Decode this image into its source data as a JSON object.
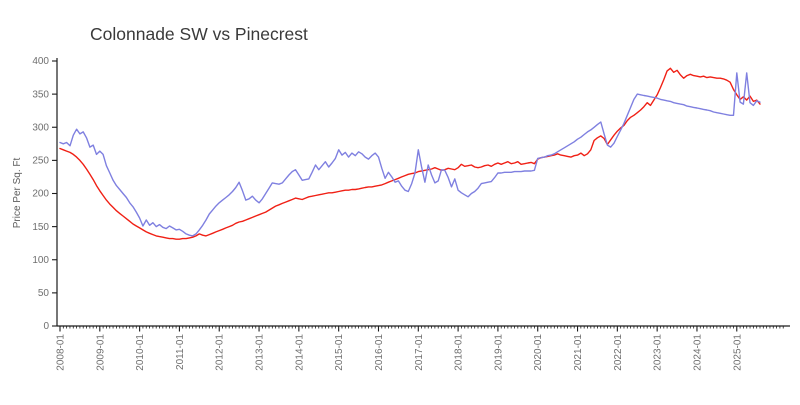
{
  "page": {
    "background": "#ffffff"
  },
  "chart_data": {
    "type": "line",
    "title": "Colonnade SW vs Pinecrest",
    "xlabel": "",
    "ylabel": "Price Per Sq. Ft",
    "x_unit": "month",
    "x_start": "2008-01",
    "x_end": "2025-08",
    "x_major_tick_labels": [
      "2008-01",
      "2009-01",
      "2010-01",
      "2011-01",
      "2012-01",
      "2013-01",
      "2014-01",
      "2015-01",
      "2016-01",
      "2017-01",
      "2018-01",
      "2019-01",
      "2020-01",
      "2021-01",
      "2022-01",
      "2023-01",
      "2024-01",
      "2025-01"
    ],
    "ylim": [
      0,
      400
    ],
    "y_ticks": [
      0,
      50,
      100,
      150,
      200,
      250,
      300,
      350,
      400
    ],
    "grid": false,
    "legend_position": "none",
    "axis_color": "#1c1c1c",
    "tick_label_color": "#6f6f6f",
    "title_color": "#3a3a3a",
    "series": [
      {
        "name": "Colonnade SW",
        "color": "#f02015",
        "values": [
          268,
          266,
          264,
          262,
          259,
          255,
          250,
          244,
          237,
          229,
          221,
          212,
          204,
          197,
          190,
          184,
          179,
          174,
          170,
          166,
          162,
          158,
          154,
          151,
          148,
          145,
          142,
          140,
          138,
          136,
          135,
          134,
          133,
          132,
          132,
          131,
          131,
          132,
          132,
          133,
          134,
          136,
          139,
          137,
          136,
          138,
          140,
          142,
          144,
          146,
          148,
          150,
          152,
          155,
          157,
          158,
          160,
          162,
          164,
          166,
          168,
          170,
          172,
          175,
          178,
          181,
          183,
          185,
          187,
          189,
          191,
          193,
          192,
          191,
          193,
          195,
          196,
          197,
          198,
          199,
          200,
          201,
          201,
          202,
          203,
          204,
          205,
          205,
          206,
          206,
          207,
          208,
          209,
          210,
          210,
          211,
          212,
          213,
          215,
          217,
          219,
          221,
          223,
          225,
          227,
          229,
          230,
          231,
          233,
          234,
          235,
          236,
          237,
          239,
          237,
          235,
          236,
          238,
          237,
          236,
          239,
          244,
          241,
          242,
          243,
          240,
          239,
          240,
          242,
          243,
          241,
          244,
          246,
          244,
          246,
          248,
          245,
          246,
          248,
          244,
          245,
          246,
          247,
          245,
          252,
          254,
          255,
          256,
          257,
          258,
          260,
          258,
          257,
          256,
          255,
          257,
          258,
          261,
          257,
          260,
          266,
          280,
          284,
          287,
          283,
          274,
          281,
          288,
          294,
          299,
          303,
          310,
          315,
          318,
          322,
          326,
          331,
          337,
          333,
          341,
          349,
          360,
          372,
          385,
          389,
          383,
          386,
          379,
          374,
          378,
          380,
          378,
          377,
          376,
          377,
          375,
          376,
          375,
          374,
          374,
          373,
          371,
          368,
          357,
          349,
          342,
          346,
          341,
          347,
          339,
          341,
          335
        ]
      },
      {
        "name": "Pinecrest",
        "color": "#7f80e0",
        "values": [
          277,
          275,
          277,
          272,
          288,
          297,
          290,
          293,
          284,
          270,
          273,
          259,
          264,
          259,
          242,
          231,
          220,
          212,
          206,
          200,
          194,
          186,
          180,
          172,
          163,
          151,
          160,
          152,
          156,
          150,
          153,
          149,
          147,
          151,
          148,
          145,
          146,
          143,
          139,
          137,
          136,
          139,
          145,
          152,
          160,
          169,
          175,
          181,
          186,
          190,
          194,
          198,
          203,
          209,
          217,
          204,
          190,
          192,
          196,
          190,
          186,
          192,
          200,
          208,
          216,
          215,
          214,
          216,
          222,
          228,
          233,
          236,
          228,
          220,
          221,
          222,
          232,
          243,
          236,
          242,
          248,
          240,
          246,
          253,
          266,
          258,
          262,
          255,
          261,
          257,
          263,
          260,
          255,
          252,
          257,
          261,
          255,
          238,
          223,
          232,
          225,
          217,
          219,
          211,
          205,
          203,
          215,
          231,
          266,
          240,
          217,
          243,
          228,
          216,
          219,
          236,
          235,
          224,
          210,
          222,
          205,
          201,
          198,
          195,
          200,
          203,
          208,
          215,
          216,
          217,
          218,
          224,
          231,
          231,
          232,
          232,
          232,
          233,
          233,
          233,
          234,
          234,
          234,
          235,
          253,
          254,
          255,
          257,
          258,
          260,
          263,
          266,
          269,
          272,
          275,
          278,
          282,
          285,
          289,
          293,
          296,
          300,
          304,
          308,
          290,
          273,
          270,
          276,
          286,
          296,
          306,
          318,
          330,
          342,
          350,
          349,
          348,
          347,
          346,
          345,
          344,
          342,
          341,
          340,
          339,
          337,
          336,
          335,
          334,
          332,
          331,
          330,
          329,
          328,
          327,
          326,
          325,
          323,
          322,
          321,
          320,
          319,
          318,
          318,
          382,
          338,
          335,
          382,
          337,
          333,
          340,
          338
        ]
      }
    ]
  }
}
